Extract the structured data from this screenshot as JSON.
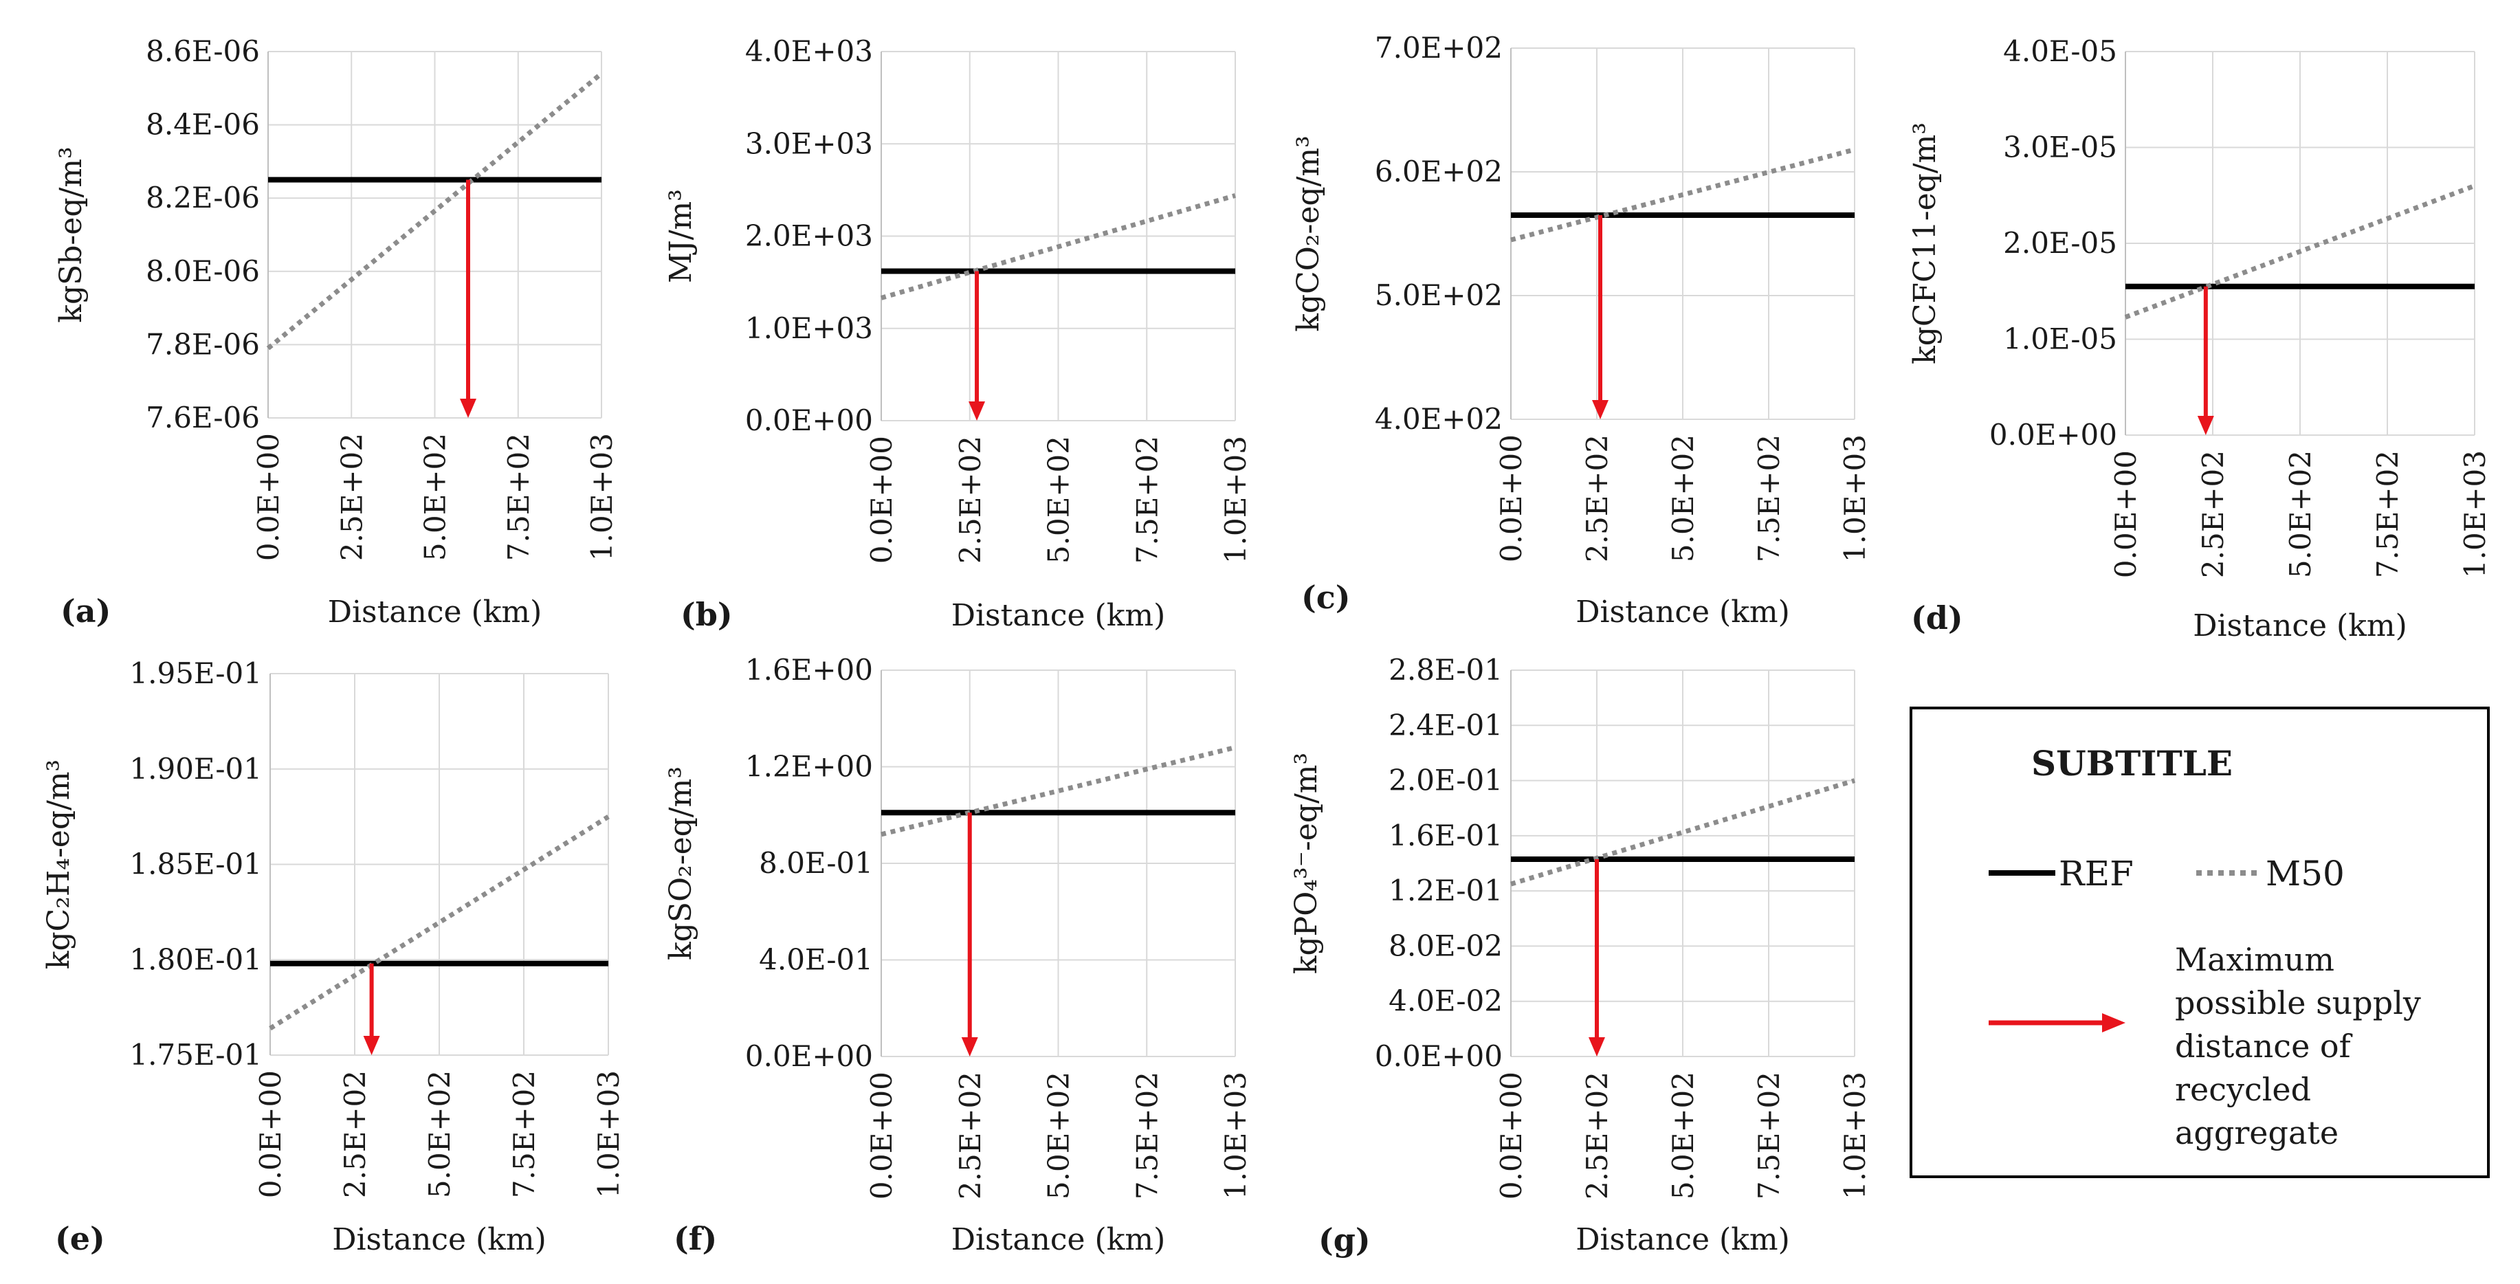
{
  "legend": {
    "title": "SUBTITLE",
    "ref_label": "REF",
    "m50_label": "M50",
    "arrow_lines": [
      "Maximum",
      "possible supply",
      "distance of",
      "recycled",
      "aggregate"
    ]
  },
  "colors": {
    "ref": "#000000",
    "m50": "#8c8c8c",
    "arrow": "#e8141c",
    "grid": "#d9d9d9"
  },
  "chart_data": [
    {
      "type": "line",
      "panel": "(a)",
      "xlabel": "Distance (km)",
      "ylabel": "kgSb-eq/m³",
      "x_ticks": [
        "0.0E+00",
        "2.5E+02",
        "5.0E+02",
        "7.5E+02",
        "1.0E+03"
      ],
      "y_ticks": [
        "7.6E-06",
        "7.8E-06",
        "8.0E-06",
        "8.2E-06",
        "8.4E-06",
        "8.6E-06"
      ],
      "xlim": [
        0,
        1000
      ],
      "ylim": [
        7.6e-06,
        8.6e-06
      ],
      "series": [
        {
          "name": "REF",
          "x": [
            0,
            1000
          ],
          "values": [
            8.25e-06,
            8.25e-06
          ]
        },
        {
          "name": "M50",
          "x": [
            0,
            1000
          ],
          "values": [
            7.79e-06,
            8.54e-06
          ]
        }
      ],
      "max_distance_km": 600
    },
    {
      "type": "line",
      "panel": "(b)",
      "xlabel": "Distance (km)",
      "ylabel": "MJ/m³",
      "x_ticks": [
        "0.0E+00",
        "2.5E+02",
        "5.0E+02",
        "7.5E+02",
        "1.0E+03"
      ],
      "y_ticks": [
        "0.0E+00",
        "1.0E+03",
        "2.0E+03",
        "3.0E+03",
        "4.0E+03"
      ],
      "xlim": [
        0,
        1000
      ],
      "ylim": [
        0,
        4000
      ],
      "series": [
        {
          "name": "REF",
          "x": [
            0,
            1000
          ],
          "values": [
            1620,
            1620
          ]
        },
        {
          "name": "M50",
          "x": [
            0,
            1000
          ],
          "values": [
            1330,
            2440
          ]
        }
      ],
      "max_distance_km": 270
    },
    {
      "type": "line",
      "panel": "(c)",
      "xlabel": "Distance (km)",
      "ylabel": "kgCO₂-eq/m³",
      "x_ticks": [
        "0.0E+00",
        "2.5E+02",
        "5.0E+02",
        "7.5E+02",
        "1.0E+03"
      ],
      "y_ticks": [
        "4.0E+02",
        "5.0E+02",
        "6.0E+02",
        "7.0E+02"
      ],
      "xlim": [
        0,
        1000
      ],
      "ylim": [
        400,
        700
      ],
      "series": [
        {
          "name": "REF",
          "x": [
            0,
            1000
          ],
          "values": [
            565,
            565
          ]
        },
        {
          "name": "M50",
          "x": [
            0,
            1000
          ],
          "values": [
            545,
            618
          ]
        }
      ],
      "max_distance_km": 260
    },
    {
      "type": "line",
      "panel": "(d)",
      "xlabel": "Distance (km)",
      "ylabel": "kgCFC11-eq/m³",
      "x_ticks": [
        "0.0E+00",
        "2.5E+02",
        "5.0E+02",
        "7.5E+02",
        "1.0E+03"
      ],
      "y_ticks": [
        "0.0E+00",
        "1.0E-05",
        "2.0E-05",
        "3.0E-05",
        "4.0E-05"
      ],
      "xlim": [
        0,
        1000
      ],
      "ylim": [
        0,
        4e-05
      ],
      "series": [
        {
          "name": "REF",
          "x": [
            0,
            1000
          ],
          "values": [
            1.55e-05,
            1.55e-05
          ]
        },
        {
          "name": "M50",
          "x": [
            0,
            1000
          ],
          "values": [
            1.23e-05,
            2.6e-05
          ]
        }
      ],
      "max_distance_km": 230
    },
    {
      "type": "line",
      "panel": "(e)",
      "xlabel": "Distance (km)",
      "ylabel": "kgC₂H₄-eq/m³",
      "x_ticks": [
        "0.0E+00",
        "2.5E+02",
        "5.0E+02",
        "7.5E+02",
        "1.0E+03"
      ],
      "y_ticks": [
        "1.75E-01",
        "1.80E-01",
        "1.85E-01",
        "1.90E-01",
        "1.95E-01"
      ],
      "xlim": [
        0,
        1000
      ],
      "ylim": [
        0.175,
        0.195
      ],
      "series": [
        {
          "name": "REF",
          "x": [
            0,
            1000
          ],
          "values": [
            0.1798,
            0.1798
          ]
        },
        {
          "name": "M50",
          "x": [
            0,
            1000
          ],
          "values": [
            0.1764,
            0.1875
          ]
        }
      ],
      "max_distance_km": 300
    },
    {
      "type": "line",
      "panel": "(f)",
      "xlabel": "Distance (km)",
      "ylabel": "kgSO₂-eq/m³",
      "x_ticks": [
        "0.0E+00",
        "2.5E+02",
        "5.0E+02",
        "7.5E+02",
        "1.0E+03"
      ],
      "y_ticks": [
        "0.0E+00",
        "4.0E-01",
        "8.0E-01",
        "1.2E+00",
        "1.6E+00"
      ],
      "xlim": [
        0,
        1000
      ],
      "ylim": [
        0,
        1.6
      ],
      "series": [
        {
          "name": "REF",
          "x": [
            0,
            1000
          ],
          "values": [
            1.01,
            1.01
          ]
        },
        {
          "name": "M50",
          "x": [
            0,
            1000
          ],
          "values": [
            0.92,
            1.28
          ]
        }
      ],
      "max_distance_km": 250
    },
    {
      "type": "line",
      "panel": "(g)",
      "xlabel": "Distance (km)",
      "ylabel": "kgPO₄³⁻-eq/m³",
      "x_ticks": [
        "0.0E+00",
        "2.5E+02",
        "5.0E+02",
        "7.5E+02",
        "1.0E+03"
      ],
      "y_ticks": [
        "0.0E+00",
        "4.0E-02",
        "8.0E-02",
        "1.2E-01",
        "1.6E-01",
        "2.0E-01",
        "2.4E-01",
        "2.8E-01"
      ],
      "xlim": [
        0,
        1000
      ],
      "ylim": [
        0,
        0.28
      ],
      "series": [
        {
          "name": "REF",
          "x": [
            0,
            1000
          ],
          "values": [
            0.143,
            0.143
          ]
        },
        {
          "name": "M50",
          "x": [
            0,
            1000
          ],
          "values": [
            0.125,
            0.2
          ]
        }
      ],
      "max_distance_km": 250
    }
  ]
}
